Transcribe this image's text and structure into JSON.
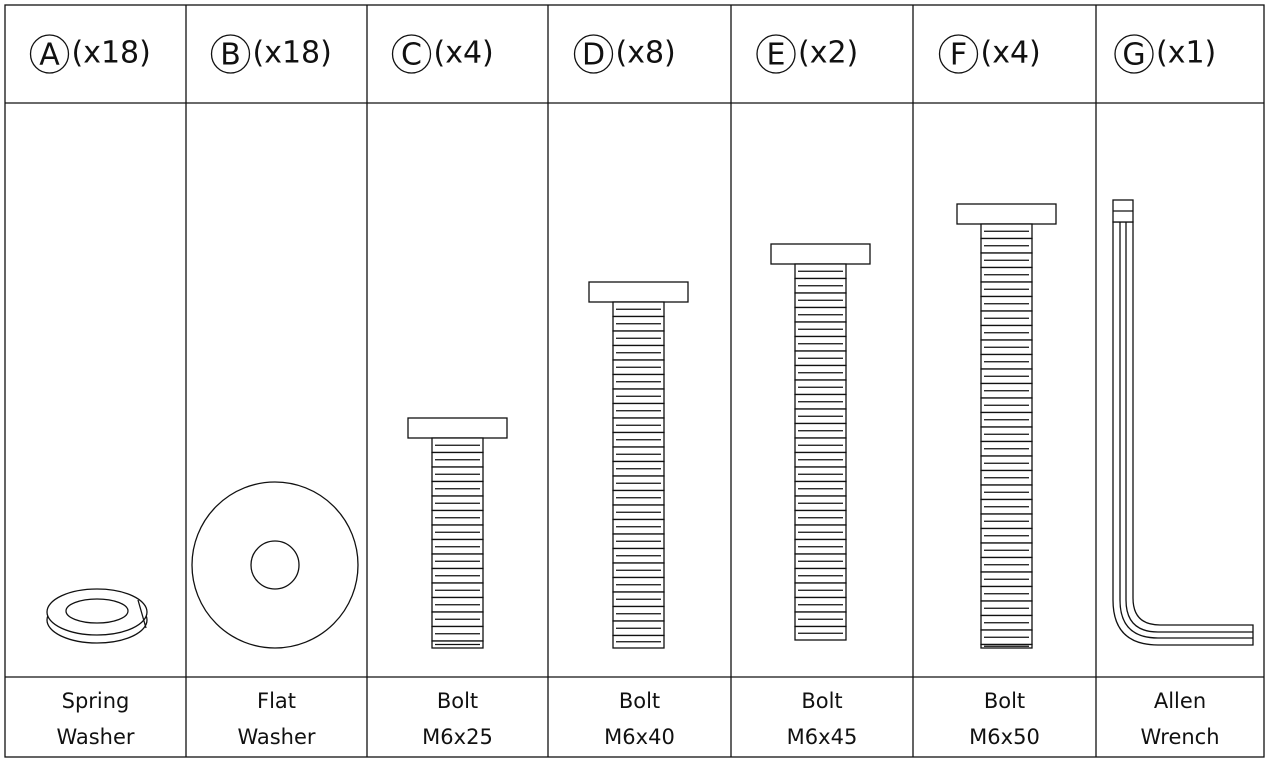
{
  "parts": [
    {
      "letter": "A",
      "quantity": "(x18)",
      "name": [
        "Spring",
        "Washer"
      ]
    },
    {
      "letter": "B",
      "quantity": "(x18)",
      "name": [
        "Flat",
        "Washer"
      ]
    },
    {
      "letter": "C",
      "quantity": "(x4)",
      "name": [
        "Bolt",
        "M6x25"
      ]
    },
    {
      "letter": "D",
      "quantity": "(x8)",
      "name": [
        "Bolt",
        "M6x40"
      ]
    },
    {
      "letter": "E",
      "quantity": "(x2)",
      "name": [
        "Bolt",
        "M6x45"
      ]
    },
    {
      "letter": "F",
      "quantity": "(x4)",
      "name": [
        "Bolt",
        "M6x50"
      ]
    },
    {
      "letter": "G",
      "quantity": "(x1)",
      "name": [
        "Allen",
        "Wrench"
      ]
    }
  ]
}
